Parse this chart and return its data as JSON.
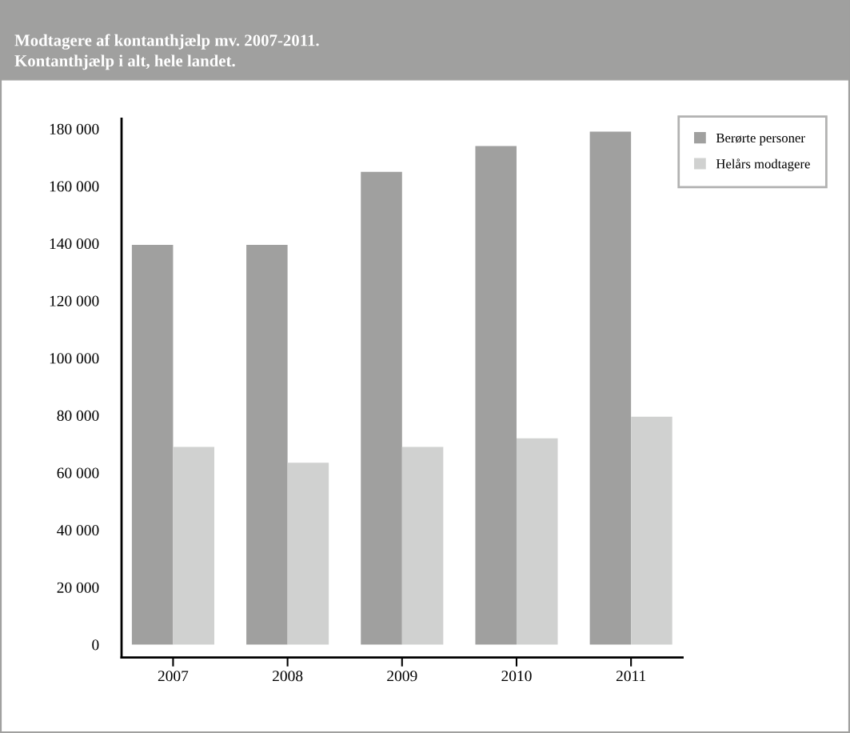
{
  "chart_data": {
    "type": "bar",
    "title": "Modtagere af kontanthjælp mv. 2007-2011.",
    "subtitle": "Kontanthjælp i alt, hele landet.",
    "categories": [
      "2007",
      "2008",
      "2009",
      "2010",
      "2011"
    ],
    "series": [
      {
        "name": "Berørte personer",
        "color": "#a0a09f",
        "values": [
          139500,
          139500,
          165000,
          174000,
          179000
        ]
      },
      {
        "name": "Helårs modtagere",
        "color": "#d0d1d0",
        "values": [
          69000,
          63500,
          69000,
          72000,
          79500
        ]
      }
    ],
    "ylim": [
      -4500,
      183500
    ],
    "yticks": [
      {
        "value": 0,
        "label": "0"
      },
      {
        "value": 20000,
        "label": "20 000"
      },
      {
        "value": 40000,
        "label": "40 000"
      },
      {
        "value": 60000,
        "label": "60 000"
      },
      {
        "value": 80000,
        "label": "80 000"
      },
      {
        "value": 100000,
        "label": "100 000"
      },
      {
        "value": 120000,
        "label": "120 000"
      },
      {
        "value": 140000,
        "label": "140 000"
      },
      {
        "value": 160000,
        "label": "160 000"
      },
      {
        "value": 180000,
        "label": "180 000"
      }
    ],
    "grid": false,
    "legend": "top right"
  }
}
